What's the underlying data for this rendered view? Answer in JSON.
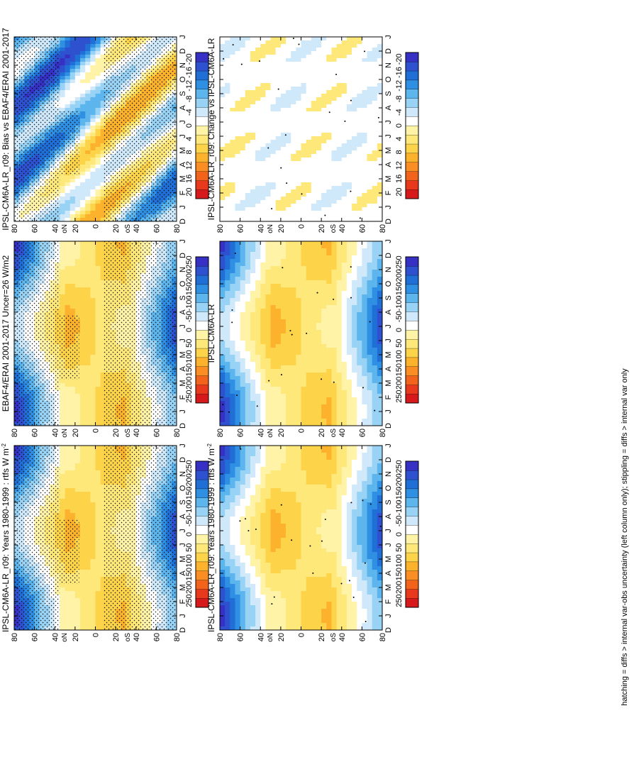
{
  "figure": {
    "footnote": "hatching = diffs > internal var-obs uncertainty (left column only); stippling = diffs > internal var only"
  },
  "colorbars": {
    "absolute": {
      "labels": [
        "250",
        "200",
        "150",
        "100",
        "50",
        "0",
        "-50",
        "-100",
        "-150",
        "-200",
        "-250"
      ],
      "colors": [
        "#d7191c",
        "#e8391c",
        "#f4631c",
        "#fa8e22",
        "#fdb22d",
        "#fdd449",
        "#fee87a",
        "#fff3a8",
        "#ffffff",
        "#cfe9fb",
        "#98d2f4",
        "#5cb5ec",
        "#2f8fe2",
        "#1f6fd6",
        "#2e52cf",
        "#3630c4"
      ]
    },
    "difference": {
      "labels": [
        "20",
        "16",
        "12",
        "8",
        "4",
        "0",
        "-4",
        "-8",
        "-12",
        "-16",
        "-20"
      ],
      "colors": [
        "#d7191c",
        "#e8391c",
        "#f4631c",
        "#fa8e22",
        "#fdb22d",
        "#fdd449",
        "#fee87a",
        "#fff3a8",
        "#ffffff",
        "#cfe9fb",
        "#98d2f4",
        "#5cb5ec",
        "#2f8fe2",
        "#1f6fd6",
        "#2e52cf",
        "#3630c4"
      ]
    }
  },
  "axes": {
    "months": [
      "D",
      "J",
      "F",
      "M",
      "A",
      "M",
      "J",
      "J",
      "A",
      "S",
      "O",
      "N",
      "D",
      "J"
    ],
    "lat_labels": [
      "80",
      "60",
      "40",
      "20",
      "0",
      "20",
      "40",
      "60",
      "80"
    ],
    "lat_N": "N",
    "lat_S": "S",
    "degree": "o"
  },
  "chart_data": [
    {
      "type": "heatmap",
      "title": "IPSL-CM6A-LR_r09: Years 1980-1999 : rtfs W m",
      "title_sup": "-2",
      "colorbar": "absolute",
      "pattern": "abs",
      "stipple": "dense",
      "x": [
        "D",
        "J",
        "F",
        "M",
        "A",
        "M",
        "J",
        "J",
        "A",
        "S",
        "O",
        "N",
        "D",
        "J"
      ],
      "y": [
        "80N",
        "60N",
        "40N",
        "20N",
        "0",
        "20S",
        "40S",
        "60S",
        "80S"
      ],
      "range": [
        -250,
        250
      ]
    },
    {
      "type": "heatmap",
      "title": "IPSL-CM6A-LR_r09: Years 1980-1999 : rtfs W m",
      "title_sup": "-2",
      "colorbar": "absolute",
      "pattern": "abs",
      "stipple": "sparse",
      "x": [
        "D",
        "J",
        "F",
        "M",
        "A",
        "M",
        "J",
        "J",
        "A",
        "S",
        "O",
        "N",
        "D",
        "J"
      ],
      "y": [
        "80N",
        "60N",
        "40N",
        "20N",
        "0",
        "20S",
        "40S",
        "60S",
        "80S"
      ],
      "range": [
        -250,
        250
      ]
    },
    {
      "type": "heatmap",
      "title": "EBAF4/ERAI 2001-2017 Uncer=26 W/m2",
      "title_sup": "",
      "colorbar": "absolute",
      "pattern": "abs",
      "stipple": "dense",
      "x": [
        "D",
        "J",
        "F",
        "M",
        "A",
        "M",
        "J",
        "J",
        "A",
        "S",
        "O",
        "N",
        "D",
        "J"
      ],
      "y": [
        "80N",
        "60N",
        "40N",
        "20N",
        "0",
        "20S",
        "40S",
        "60S",
        "80S"
      ],
      "range": [
        -250,
        250
      ]
    },
    {
      "type": "heatmap",
      "title": "IPSL-CM6A-LR",
      "title_sup": "",
      "colorbar": "absolute",
      "pattern": "abs",
      "stipple": "sparse",
      "x": [
        "D",
        "J",
        "F",
        "M",
        "A",
        "M",
        "J",
        "J",
        "A",
        "S",
        "O",
        "N",
        "D",
        "J"
      ],
      "y": [
        "80N",
        "60N",
        "40N",
        "20N",
        "0",
        "20S",
        "40S",
        "60S",
        "80S"
      ],
      "range": [
        -250,
        250
      ]
    },
    {
      "type": "heatmap",
      "title": "IPSL-CM6A-LR_r09: Bias vs EBAF4/ERAI 2001-2017",
      "title_sup": "",
      "colorbar": "difference",
      "pattern": "bias",
      "stipple": "dense",
      "x": [
        "D",
        "J",
        "F",
        "M",
        "A",
        "M",
        "J",
        "J",
        "A",
        "S",
        "O",
        "N",
        "D",
        "J"
      ],
      "y": [
        "80N",
        "60N",
        "40N",
        "20N",
        "0",
        "20S",
        "40S",
        "60S",
        "80S"
      ],
      "range": [
        -20,
        20
      ]
    },
    {
      "type": "heatmap",
      "title": "IPSL-CM6A-LR_r09: Change vs IPSL-CM6A-LR",
      "title_sup": "",
      "colorbar": "difference",
      "pattern": "change",
      "stipple": "sparse",
      "x": [
        "D",
        "J",
        "F",
        "M",
        "A",
        "M",
        "J",
        "J",
        "A",
        "S",
        "O",
        "N",
        "D",
        "J"
      ],
      "y": [
        "80N",
        "60N",
        "40N",
        "20N",
        "0",
        "20S",
        "40S",
        "60S",
        "80S"
      ],
      "range": [
        -20,
        20
      ]
    }
  ]
}
